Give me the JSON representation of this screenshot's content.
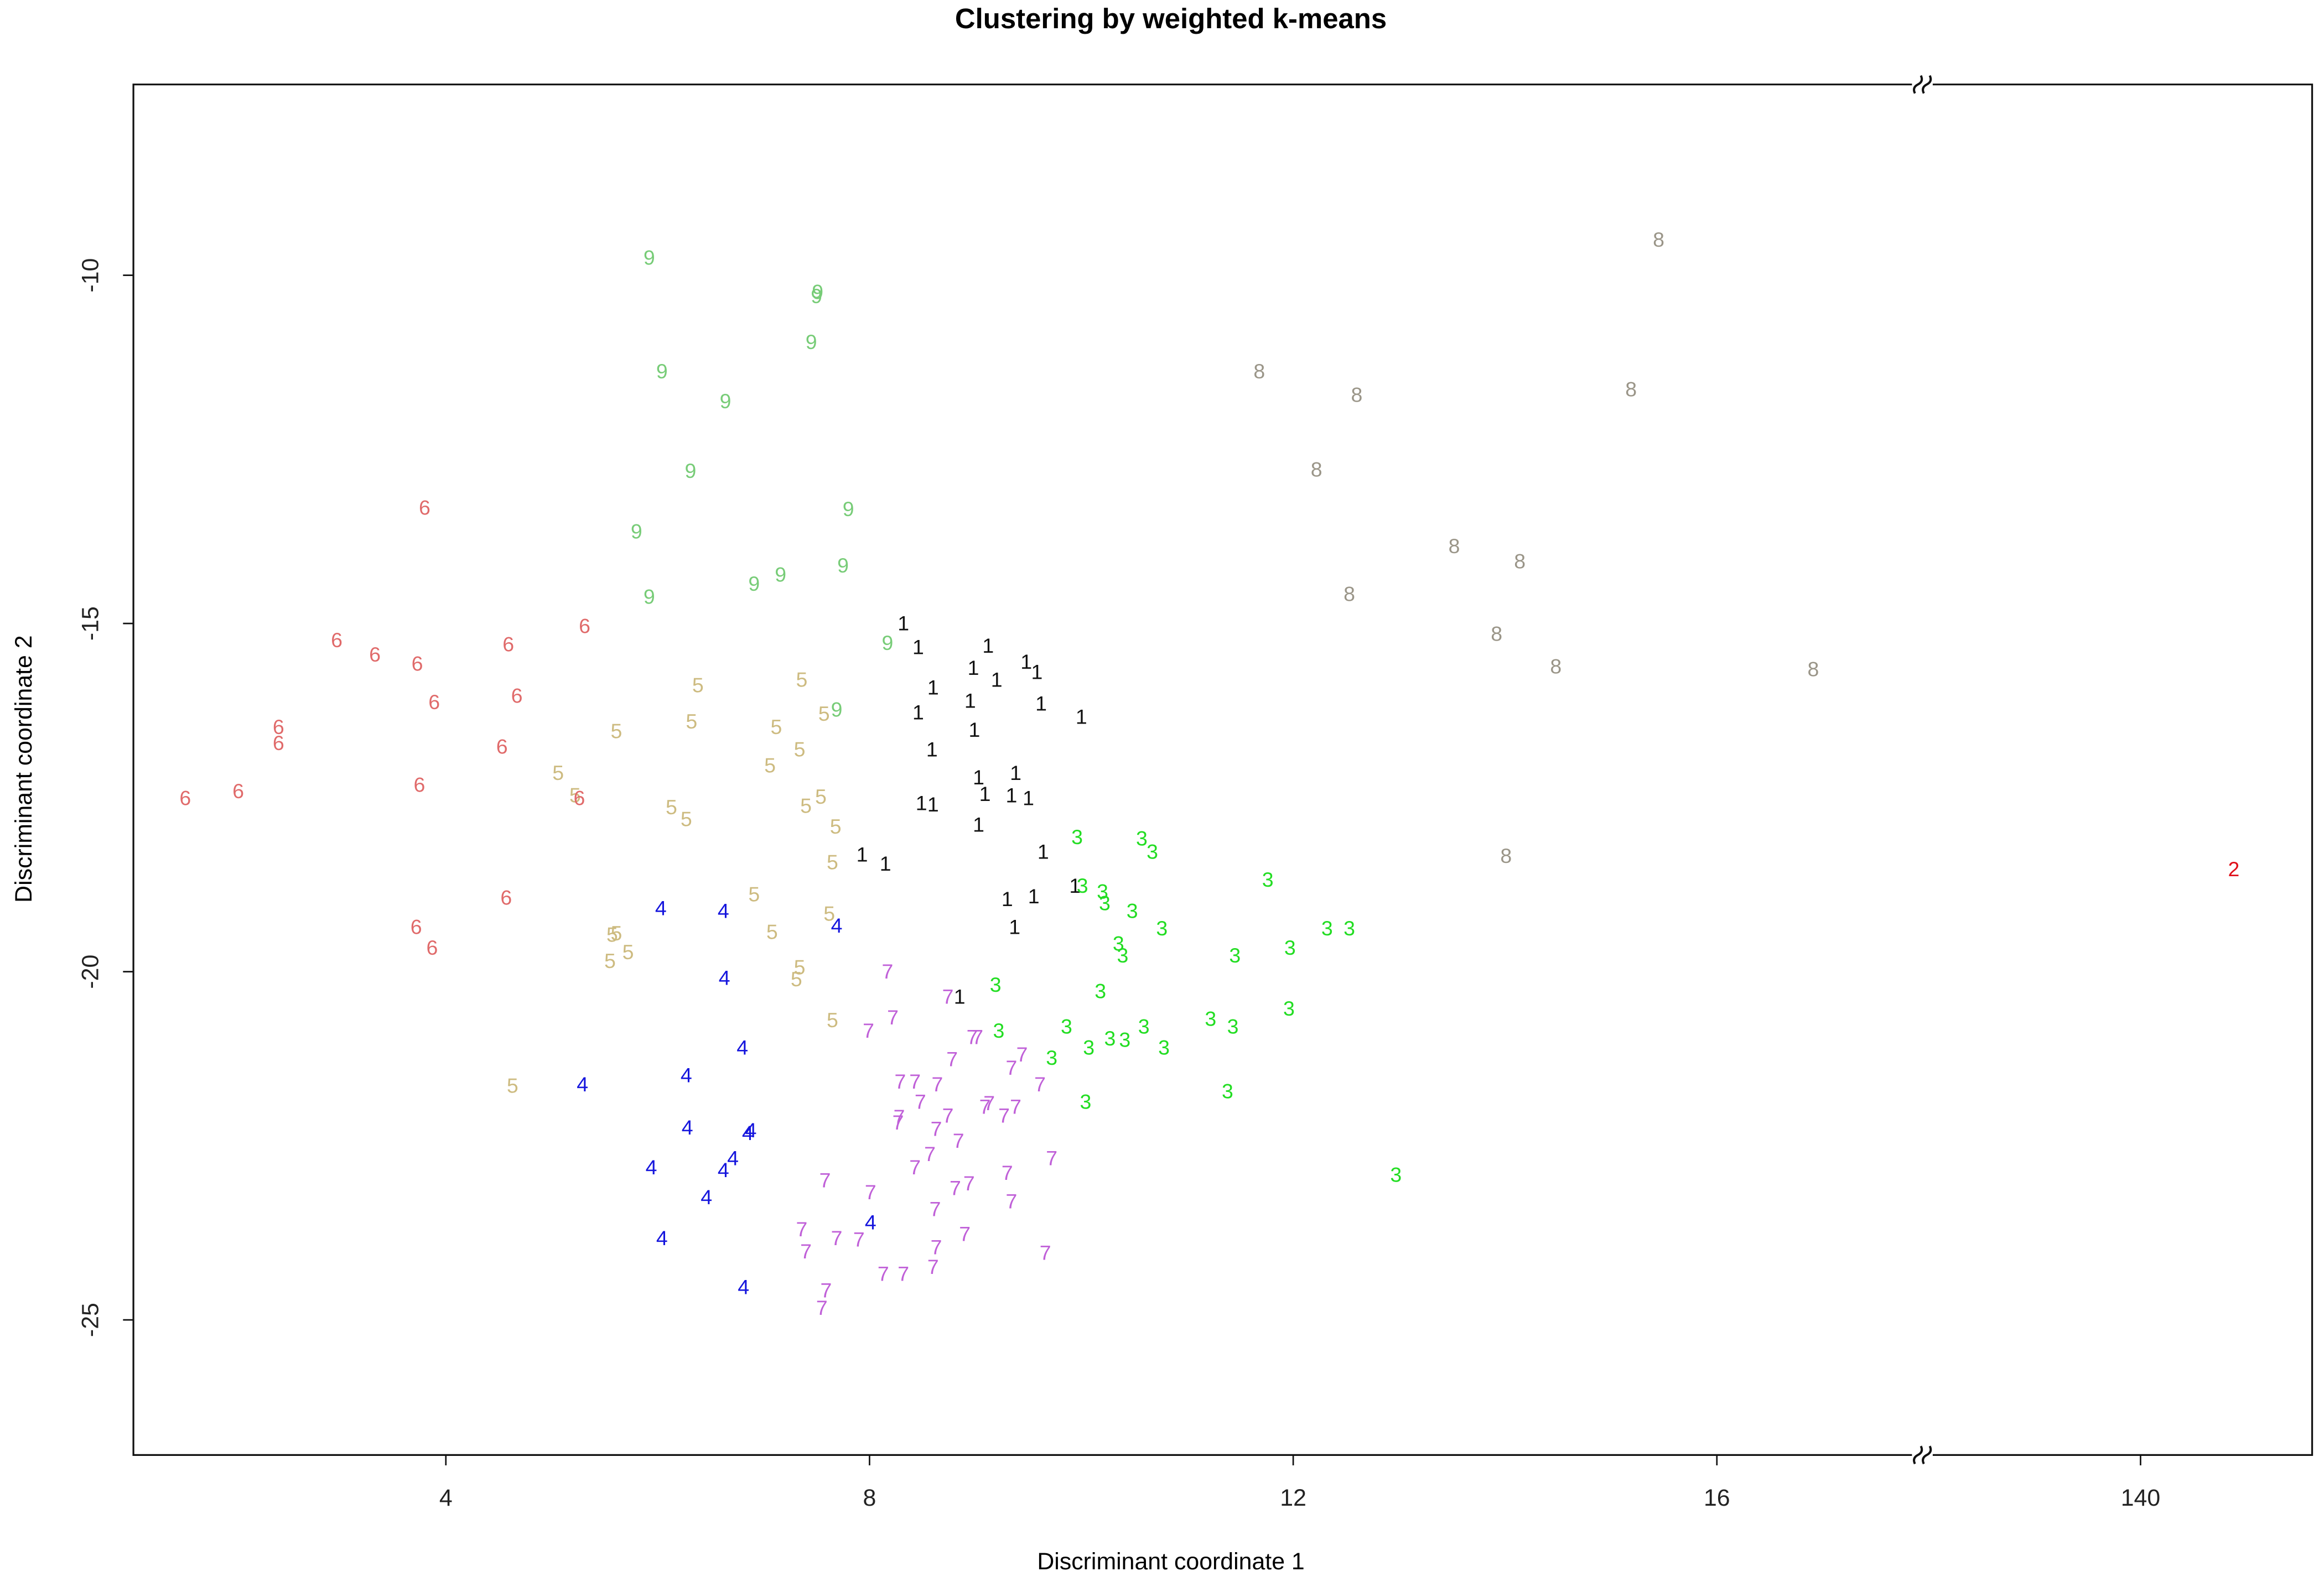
{
  "chart_data": {
    "type": "scatter",
    "title": "Clustering by weighted k-means",
    "x_label": "Discriminant coordinate 1",
    "y_label": "Discriminant coordinate 2",
    "xlim": [
      1.05,
      141.62
    ],
    "xbreak": [
      17.94,
      137.94
    ],
    "ylim": [
      -26.94,
      -7.26
    ],
    "xticks": [
      4,
      8,
      12,
      16,
      140
    ],
    "yticks": [
      -10,
      -15,
      -20,
      -25
    ],
    "grid": false,
    "series": [
      {
        "name": "1",
        "color": "#111111",
        "x": [
          8.32,
          8.46,
          9.12,
          8.98,
          9.48,
          9.2,
          9.58,
          8.6,
          8.95,
          9.62,
          8.46,
          10.0,
          8.99,
          8.59,
          9.03,
          9.38,
          9.09,
          9.34,
          9.5,
          8.49,
          8.6,
          9.03,
          9.64,
          7.93,
          8.15,
          9.94,
          9.55,
          9.3,
          9.37,
          8.85
        ],
        "values": [
          -15.02,
          -15.36,
          -15.34,
          -15.66,
          -15.57,
          -15.83,
          -15.72,
          -15.94,
          -16.13,
          -16.17,
          -16.3,
          -16.36,
          -16.55,
          -16.83,
          -17.23,
          -17.17,
          -17.47,
          -17.49,
          -17.53,
          -17.6,
          -17.62,
          -17.91,
          -18.3,
          -18.34,
          -18.47,
          -18.79,
          -18.94,
          -18.98,
          -19.38,
          -20.38
        ]
      },
      {
        "name": "2",
        "color": "#e0101a",
        "x": [
          140.88
        ],
        "values": [
          -18.55
        ]
      },
      {
        "name": "3",
        "color": "#22dd22",
        "x": [
          9.96,
          10.57,
          10.67,
          11.76,
          10.01,
          10.2,
          10.22,
          10.48,
          10.76,
          12.53,
          12.32,
          10.35,
          10.39,
          11.45,
          11.97,
          9.19,
          10.18,
          9.22,
          9.86,
          11.96,
          11.22,
          11.43,
          10.59,
          10.27,
          10.41,
          10.07,
          10.78,
          9.72,
          11.38,
          10.04,
          12.97
        ],
        "values": [
          -18.09,
          -18.11,
          -18.3,
          -18.7,
          -18.79,
          -18.87,
          -19.04,
          -19.15,
          -19.4,
          -19.4,
          -19.4,
          -19.62,
          -19.79,
          -19.79,
          -19.68,
          -20.21,
          -20.3,
          -20.87,
          -20.81,
          -20.55,
          -20.7,
          -20.81,
          -20.81,
          -20.98,
          -21.0,
          -21.11,
          -21.11,
          -21.26,
          -21.74,
          -21.89,
          -22.94
        ]
      },
      {
        "name": "4",
        "color": "#1515dd",
        "x": [
          6.03,
          6.62,
          7.69,
          6.63,
          6.8,
          6.27,
          5.29,
          6.28,
          6.88,
          6.85,
          6.71,
          5.94,
          6.62,
          6.46,
          8.01,
          6.04,
          6.81
        ],
        "values": [
          -19.11,
          -19.15,
          -19.36,
          -20.11,
          -21.11,
          -21.51,
          -21.64,
          -22.26,
          -22.3,
          -22.34,
          -22.7,
          -22.83,
          -22.87,
          -23.26,
          -23.62,
          -23.85,
          -24.55
        ]
      },
      {
        "name": "5",
        "color": "#cdbb80",
        "x": [
          6.38,
          7.36,
          6.32,
          5.61,
          7.12,
          7.57,
          7.34,
          7.06,
          5.06,
          5.22,
          6.13,
          6.27,
          7.4,
          7.54,
          7.68,
          7.65,
          6.91,
          7.62,
          7.08,
          5.61,
          5.57,
          5.72,
          5.55,
          7.34,
          7.31,
          7.65,
          4.63
        ],
        "values": [
          -15.91,
          -15.83,
          -16.43,
          -16.57,
          -16.51,
          -16.32,
          -16.83,
          -17.06,
          -17.17,
          -17.49,
          -17.66,
          -17.83,
          -17.64,
          -17.51,
          -17.94,
          -18.45,
          -18.91,
          -19.19,
          -19.45,
          -19.47,
          -19.49,
          -19.74,
          -19.87,
          -19.96,
          -20.13,
          -20.72,
          -21.66
        ]
      },
      {
        "name": "6",
        "color": "#e06a6a",
        "x": [
          3.8,
          5.31,
          2.97,
          3.33,
          3.73,
          4.59,
          4.67,
          3.89,
          2.42,
          2.42,
          4.53,
          1.54,
          2.04,
          3.75,
          5.26,
          4.57,
          3.72,
          3.87
        ],
        "values": [
          -13.36,
          -15.06,
          -15.26,
          -15.47,
          -15.6,
          -15.32,
          -16.06,
          -16.15,
          -16.51,
          -16.74,
          -16.79,
          -17.53,
          -17.43,
          -17.34,
          -17.53,
          -18.96,
          -19.38,
          -19.68
        ]
      },
      {
        "name": "7",
        "color": "#c060d8",
        "x": [
          8.17,
          8.74,
          8.22,
          7.99,
          8.97,
          9.02,
          9.44,
          9.34,
          8.78,
          8.29,
          8.64,
          8.43,
          9.61,
          8.48,
          8.28,
          9.13,
          9.09,
          9.38,
          9.27,
          8.74,
          8.63,
          8.84,
          8.27,
          8.57,
          8.43,
          9.72,
          7.58,
          8.94,
          8.81,
          8.01,
          9.3,
          9.34,
          8.62,
          8.9,
          7.36,
          7.69,
          7.9,
          7.4,
          8.63,
          9.66,
          8.6,
          8.13,
          8.32,
          7.59,
          7.55
        ],
        "values": [
          -20.02,
          -20.38,
          -20.68,
          -20.87,
          -20.96,
          -20.96,
          -21.21,
          -21.4,
          -21.28,
          -21.6,
          -21.64,
          -21.6,
          -21.64,
          -21.89,
          -22.11,
          -21.91,
          -21.96,
          -21.96,
          -22.09,
          -22.09,
          -22.28,
          -22.45,
          -22.19,
          -22.64,
          -22.83,
          -22.7,
          -23.02,
          -23.06,
          -23.13,
          -23.19,
          -22.91,
          -23.32,
          -23.43,
          -23.79,
          -23.72,
          -23.85,
          -23.87,
          -24.04,
          -23.98,
          -24.06,
          -24.26,
          -24.36,
          -24.36,
          -24.6,
          -24.85
        ]
      },
      {
        "name": "8",
        "color": "#9a9588",
        "x": [
          15.45,
          11.68,
          12.6,
          15.19,
          12.22,
          13.52,
          14.14,
          12.53,
          13.92,
          14.48,
          16.91,
          14.01
        ],
        "values": [
          -9.51,
          -11.4,
          -11.74,
          -11.66,
          -12.81,
          -13.91,
          -14.13,
          -14.6,
          -15.17,
          -15.64,
          -15.68,
          -18.36
        ]
      },
      {
        "name": "9",
        "color": "#77cc77",
        "x": [
          5.92,
          7.51,
          7.5,
          7.45,
          6.04,
          6.64,
          6.31,
          7.8,
          5.8,
          7.75,
          6.91,
          7.16,
          5.92,
          7.69,
          8.17
        ],
        "values": [
          -9.77,
          -10.26,
          -10.32,
          -10.98,
          -11.4,
          -11.83,
          -12.83,
          -13.38,
          -13.7,
          -14.19,
          -14.45,
          -14.32,
          -14.64,
          -16.26,
          -15.3
        ]
      }
    ]
  }
}
